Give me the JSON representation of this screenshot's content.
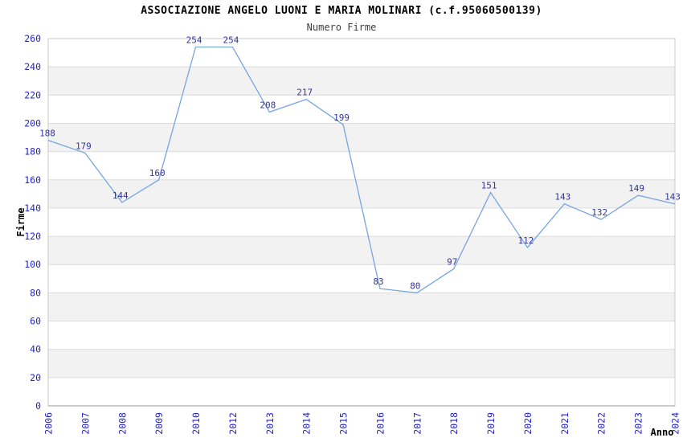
{
  "chart_data": {
    "type": "line",
    "title": "ASSOCIAZIONE ANGELO LUONI E MARIA MOLINARI (c.f.95060500139)",
    "subtitle": "Numero Firme",
    "xlabel": "Anno",
    "ylabel": "Firme",
    "categories": [
      "2006",
      "2007",
      "2008",
      "2009",
      "2010",
      "2012",
      "2013",
      "2014",
      "2015",
      "2016",
      "2017",
      "2018",
      "2019",
      "2020",
      "2021",
      "2022",
      "2023",
      "2024"
    ],
    "values": [
      188,
      179,
      144,
      160,
      254,
      254,
      208,
      217,
      199,
      83,
      80,
      97,
      151,
      112,
      143,
      132,
      149,
      143
    ],
    "ylim": [
      0,
      260
    ],
    "ytick_step": 20,
    "grid": "horizontal-bands-alternating",
    "legend": "none",
    "markers": "none",
    "colors": {
      "line": "#76a5e0",
      "data_label": "#333399",
      "tick_label": "#2323cc",
      "band_gray": "#f2f2f2",
      "grid_line": "#dcdcdc",
      "border": "#c9c9c9",
      "axis_line": "#999999",
      "axis_title": "#000000"
    }
  }
}
